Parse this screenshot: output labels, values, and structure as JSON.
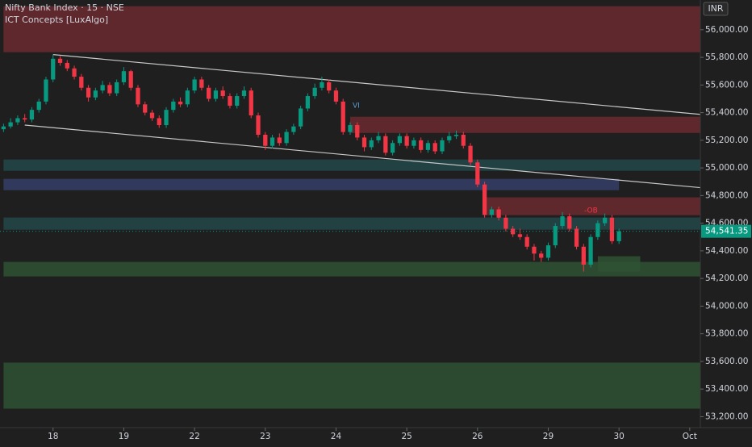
{
  "header": {
    "title": "Nifty Bank Index · 15 · NSE",
    "indicator": "ICT Concepts [LuxAlgo]",
    "currency": "INR"
  },
  "chart_data": {
    "type": "candlestick",
    "xlim": [
      -0.5,
      98.5
    ],
    "xticks": [
      {
        "value": 7,
        "label": "18"
      },
      {
        "value": 17,
        "label": "19"
      },
      {
        "value": 27,
        "label": "22"
      },
      {
        "value": 37,
        "label": "23"
      },
      {
        "value": 47,
        "label": "24"
      },
      {
        "value": 57,
        "label": "25"
      },
      {
        "value": 67,
        "label": "26"
      },
      {
        "value": 77,
        "label": "29"
      },
      {
        "value": 87,
        "label": "30"
      },
      {
        "value": 97,
        "label": "Oct"
      }
    ],
    "ylim": [
      53150,
      56215
    ],
    "yticks": [
      {
        "value": 53200,
        "label": "53,200.00"
      },
      {
        "value": 53400,
        "label": "53,400.00"
      },
      {
        "value": 53600,
        "label": "53,600.00"
      },
      {
        "value": 53800,
        "label": "53,800.00"
      },
      {
        "value": 54000,
        "label": "54,000.00"
      },
      {
        "value": 54200,
        "label": "54,200.00"
      },
      {
        "value": 54400,
        "label": "54,400.00"
      },
      {
        "value": 54600,
        "label": "54,600.00"
      },
      {
        "value": 54800,
        "label": "54,800.00"
      },
      {
        "value": 55000,
        "label": "55,000.00"
      },
      {
        "value": 55200,
        "label": "55,200.00"
      },
      {
        "value": 55400,
        "label": "55,400.00"
      },
      {
        "value": 55600,
        "label": "55,600.00"
      },
      {
        "value": 55800,
        "label": "55,800.00"
      },
      {
        "value": 56000,
        "label": "56,000.00"
      }
    ],
    "up_color": "#089981",
    "down_color": "#f23645",
    "series": [
      {
        "name": "Nifty Bank Index",
        "open": [
          55280,
          55300,
          55330,
          55360,
          55350,
          55420,
          55480,
          55640,
          55790,
          55760,
          55720,
          55660,
          55580,
          55510,
          55560,
          55600,
          55540,
          55620,
          55700,
          55580,
          55460,
          55400,
          55360,
          55310,
          55420,
          55480,
          55460,
          55560,
          55640,
          55580,
          55500,
          55560,
          55520,
          55450,
          55520,
          55560,
          55380,
          55240,
          55160,
          55220,
          55180,
          55260,
          55300,
          55430,
          55520,
          55580,
          55620,
          55560,
          55480,
          55260,
          55310,
          55220,
          55150,
          55200,
          55230,
          55110,
          55180,
          55230,
          55160,
          55200,
          55130,
          55180,
          55120,
          55200,
          55230,
          55240,
          55160,
          55040,
          54880,
          54660,
          54700,
          54640,
          54560,
          54520,
          54500,
          54430,
          54380,
          54350,
          54440,
          54580,
          54650,
          54560,
          54430,
          54300,
          54500,
          54600,
          54640,
          54470
        ],
        "high": [
          55320,
          55360,
          55380,
          55390,
          55440,
          55500,
          55660,
          55820,
          55810,
          55780,
          55740,
          55680,
          55600,
          55580,
          55630,
          55620,
          55640,
          55730,
          55710,
          55600,
          55480,
          55420,
          55380,
          55440,
          55500,
          55510,
          55580,
          55660,
          55660,
          55600,
          55580,
          55590,
          55540,
          55540,
          55590,
          55580,
          55400,
          55260,
          55240,
          55250,
          55280,
          55320,
          55450,
          55540,
          55610,
          55660,
          55640,
          55580,
          55500,
          55330,
          55330,
          55240,
          55220,
          55260,
          55250,
          55200,
          55250,
          55250,
          55220,
          55220,
          55200,
          55200,
          55220,
          55260,
          55270,
          55260,
          55180,
          55060,
          54900,
          54720,
          54720,
          54660,
          54580,
          54560,
          54520,
          54450,
          54400,
          54460,
          54600,
          54680,
          54670,
          54580,
          54450,
          54520,
          54620,
          54670,
          54660,
          54560
        ],
        "low": [
          55260,
          55285,
          55310,
          55330,
          55330,
          55400,
          55460,
          55620,
          55740,
          55700,
          55640,
          55560,
          55480,
          55490,
          55540,
          55520,
          55520,
          55600,
          55560,
          55440,
          55380,
          55340,
          55290,
          55290,
          55400,
          55440,
          55440,
          55540,
          55560,
          55480,
          55480,
          55500,
          55430,
          55430,
          55500,
          55360,
          55220,
          55130,
          55140,
          55160,
          55160,
          55240,
          55280,
          55410,
          55500,
          55560,
          55540,
          55460,
          55240,
          55240,
          55200,
          55120,
          55130,
          55180,
          55090,
          55090,
          55160,
          55140,
          55140,
          55110,
          55110,
          55100,
          55100,
          55180,
          55210,
          55140,
          55020,
          54860,
          54640,
          54640,
          54620,
          54540,
          54500,
          54480,
          54410,
          54330,
          54320,
          54330,
          54420,
          54560,
          54540,
          54410,
          54250,
          54280,
          54480,
          54580,
          54450,
          54450
        ],
        "close": [
          55300,
          55330,
          55360,
          55350,
          55420,
          55480,
          55640,
          55790,
          55760,
          55720,
          55660,
          55580,
          55510,
          55560,
          55600,
          55540,
          55620,
          55700,
          55580,
          55460,
          55400,
          55360,
          55310,
          55420,
          55480,
          55460,
          55560,
          55640,
          55580,
          55500,
          55560,
          55520,
          55450,
          55520,
          55560,
          55380,
          55240,
          55160,
          55220,
          55180,
          55260,
          55300,
          55430,
          55520,
          55580,
          55620,
          55560,
          55480,
          55260,
          55310,
          55220,
          55150,
          55200,
          55230,
          55110,
          55180,
          55230,
          55160,
          55200,
          55130,
          55180,
          55120,
          55200,
          55230,
          55240,
          55160,
          55040,
          54880,
          54660,
          54700,
          54640,
          54560,
          54520,
          54500,
          54430,
          54380,
          54350,
          54440,
          54580,
          54650,
          54560,
          54430,
          54300,
          54500,
          54600,
          54640,
          54470,
          54541.35
        ]
      }
    ],
    "last_price": {
      "value": 54541.35,
      "label": "54,541.35"
    },
    "zones": [
      {
        "from": 0,
        "to": 98.5,
        "low": 55837,
        "high": 56170,
        "color": "#6b2a30"
      },
      {
        "from": 49,
        "to": 98.5,
        "low": 55253,
        "high": 55370,
        "color": "#6b2a30"
      },
      {
        "from": 0,
        "to": 98.5,
        "low": 54979,
        "high": 55061,
        "color": "#23484a"
      },
      {
        "from": 0,
        "to": 87,
        "low": 54839,
        "high": 54921,
        "color": "#354068"
      },
      {
        "from": 68,
        "to": 98.5,
        "low": 54658,
        "high": 54787,
        "color": "#6b2a30"
      },
      {
        "from": 0,
        "to": 98.5,
        "low": 54553,
        "high": 54641,
        "color": "#23484a"
      },
      {
        "from": 0,
        "to": 98.5,
        "low": 54215,
        "high": 54320,
        "color": "#2f5234"
      },
      {
        "from": 84,
        "to": 90,
        "low": 54250,
        "high": 54361,
        "color": "#2f5234"
      },
      {
        "from": 0,
        "to": 98.5,
        "low": 53258,
        "high": 53591,
        "color": "#2f5234"
      }
    ],
    "trendlines": [
      {
        "x": [
          7,
          99
        ],
        "y": [
          55820,
          55385
        ],
        "color": "#c8c8c8"
      },
      {
        "x": [
          3,
          99
        ],
        "y": [
          55310,
          54855
        ],
        "color": "#c8c8c8"
      }
    ],
    "annotations": [
      "VI",
      "-OB"
    ]
  }
}
